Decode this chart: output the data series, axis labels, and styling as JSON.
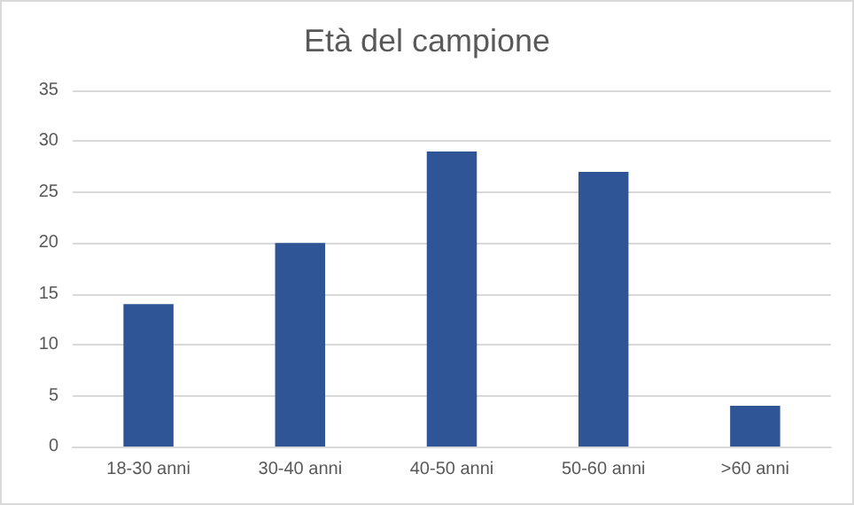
{
  "chart_data": {
    "type": "bar",
    "title": "Età del campione",
    "categories": [
      "18-30 anni",
      "30-40 anni",
      "40-50 anni",
      "50-60 anni",
      ">60 anni"
    ],
    "values": [
      14,
      20,
      29,
      27,
      4
    ],
    "color": "#2f5597",
    "ylim": [
      0,
      35
    ],
    "yticks": [
      0,
      5,
      10,
      15,
      20,
      25,
      30,
      35
    ],
    "grid": "y"
  }
}
